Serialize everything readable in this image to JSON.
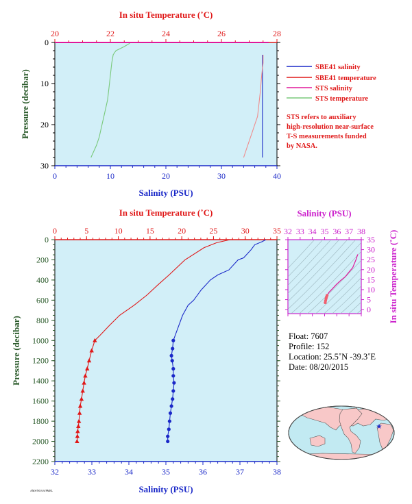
{
  "colors": {
    "salinity_axis": "#1a28c8",
    "temperature_axis": "#e01818",
    "sts_axis": "#cc22cc",
    "pressure_axis": "#2a5a2a",
    "panel_bg": "#d2eff8",
    "sbe41_salinity": "#1a28c8",
    "sbe41_temperature": "#e01818",
    "sts_salinity": "#e0189a",
    "sts_temperature": "#79c97a",
    "land": "#f8c8c8",
    "ocean": "#c2eaf2"
  },
  "top_panel": {
    "x_top_label": "In situ Temperature (˚C)",
    "x_top_ticks": [
      "20",
      "22",
      "24",
      "26",
      "28"
    ],
    "x_bottom_label": "Salinity (PSU)",
    "x_bottom_ticks": [
      "0",
      "10",
      "20",
      "30",
      "40"
    ],
    "y_label": "Pressure (decibar)",
    "y_ticks": [
      "0",
      "10",
      "20",
      "30"
    ]
  },
  "legend": {
    "items": [
      {
        "label": "SBE41 salinity",
        "color": "#1a28c8"
      },
      {
        "label": "SBE41 temperature",
        "color": "#e01818"
      },
      {
        "label": "STS salinity",
        "color": "#e0189a"
      },
      {
        "label": "STS temperature",
        "color": "#79c97a"
      }
    ],
    "note": [
      "STS refers to auxiliary",
      "high-resolution near-surface",
      "T-S measurements funded",
      "by NASA."
    ]
  },
  "main_panel": {
    "x_top_label": "In situ Temperature (˚C)",
    "x_top_ticks": [
      "0",
      "5",
      "10",
      "15",
      "20",
      "25",
      "30",
      "35"
    ],
    "x_bottom_label": "Salinity (PSU)",
    "x_bottom_ticks": [
      "32",
      "33",
      "34",
      "35",
      "36",
      "37",
      "38"
    ],
    "y_label": "Pressure (decibar)",
    "y_ticks": [
      "0",
      "200",
      "400",
      "600",
      "800",
      "1000",
      "1200",
      "1400",
      "1600",
      "1800",
      "2000",
      "2200"
    ]
  },
  "ts_panel": {
    "x_label": "Salinity (PSU)",
    "x_ticks": [
      "32",
      "33",
      "34",
      "35",
      "36",
      "37",
      "38"
    ],
    "y_label": "In situ Temperature (˚C)",
    "y_ticks": [
      "0",
      "5",
      "10",
      "15",
      "20",
      "25",
      "30",
      "35"
    ]
  },
  "float_info": {
    "float": "Float:  7607",
    "profile": "Profile:  152",
    "location": "Location:  25.5˚N  -39.3˚E",
    "date": "Date:  08/20/2015"
  },
  "footer_text": "AMS/NOAA/PMEL",
  "chart_data": [
    {
      "type": "line",
      "name": "near-surface profile",
      "xlim_salinity": [
        0,
        40
      ],
      "xlim_temperature": [
        20,
        28
      ],
      "ylim_pressure": [
        30,
        0
      ],
      "series": [
        {
          "name": "SBE41 salinity",
          "x": [
            37.4,
            37.4
          ],
          "y": [
            3,
            28
          ]
        },
        {
          "name": "SBE41 temperature",
          "x": [
            27.5,
            27.5,
            27.45,
            27.4,
            27.35,
            27.3,
            27.2,
            27.1,
            27.0,
            26.9,
            26.8
          ],
          "y": [
            3,
            5,
            8,
            12,
            15,
            18,
            20,
            22,
            24,
            26,
            28
          ]
        },
        {
          "name": "STS salinity",
          "x": [
            0,
            38.5
          ],
          "y": [
            0,
            0
          ]
        },
        {
          "name": "STS temperature",
          "x": [
            22.7,
            22.5,
            22.2,
            22.1,
            22.05,
            22.0,
            21.95,
            21.9,
            21.8,
            21.7,
            21.6,
            21.5,
            21.3
          ],
          "y": [
            0.2,
            1,
            2,
            3,
            5,
            8,
            11,
            14,
            17,
            20,
            23,
            25,
            28
          ]
        }
      ]
    },
    {
      "type": "line",
      "name": "full-depth profile",
      "xlim_salinity": [
        32,
        38
      ],
      "xlim_temperature": [
        0,
        35
      ],
      "ylim_pressure": [
        2200,
        0
      ],
      "series": [
        {
          "name": "SBE41 salinity",
          "x": [
            37.7,
            37.6,
            37.4,
            37.3,
            37.1,
            36.95,
            36.7,
            36.4,
            36.2,
            35.95,
            35.75,
            35.6,
            35.45,
            35.35,
            35.25,
            35.2,
            35.18,
            35.15,
            35.17,
            35.2,
            35.2,
            35.22,
            35.2,
            35.18,
            35.15,
            35.12,
            35.1,
            35.08,
            35.05,
            35.05
          ],
          "y": [
            0,
            20,
            50,
            100,
            180,
            200,
            300,
            350,
            400,
            500,
            600,
            650,
            750,
            850,
            950,
            1000,
            1080,
            1150,
            1200,
            1280,
            1350,
            1420,
            1500,
            1580,
            1650,
            1720,
            1800,
            1880,
            1950,
            2000
          ]
        },
        {
          "name": "SBE41 temperature",
          "x": [
            27.6,
            25.5,
            23.5,
            20.5,
            18.0,
            16.2,
            14.5,
            12.5,
            10.2,
            8.6,
            7.1,
            6.3,
            5.8,
            5.4,
            5.1,
            4.8,
            4.6,
            4.4,
            4.2,
            4.0,
            3.9,
            3.8,
            3.7,
            3.6,
            3.55,
            3.5
          ],
          "y": [
            0,
            30,
            80,
            200,
            350,
            450,
            550,
            650,
            750,
            850,
            950,
            1000,
            1100,
            1200,
            1280,
            1350,
            1420,
            1500,
            1580,
            1650,
            1720,
            1800,
            1850,
            1900,
            1950,
            2000
          ]
        }
      ]
    },
    {
      "type": "line",
      "name": "T-S diagram",
      "xlim_salinity": [
        32,
        38
      ],
      "ylim_temperature": [
        -2,
        35
      ],
      "series": [
        {
          "name": "SBE41 T-S",
          "x": [
            35.05,
            35.08,
            35.12,
            35.15,
            35.2,
            35.35,
            35.6,
            35.95,
            36.3,
            36.7,
            36.95,
            37.3,
            37.6,
            37.7
          ],
          "y": [
            3.5,
            4.5,
            5.5,
            6.3,
            7.1,
            8.6,
            10.2,
            12.5,
            14.5,
            16.5,
            18.5,
            21.0,
            25.5,
            27.6
          ]
        }
      ]
    }
  ]
}
